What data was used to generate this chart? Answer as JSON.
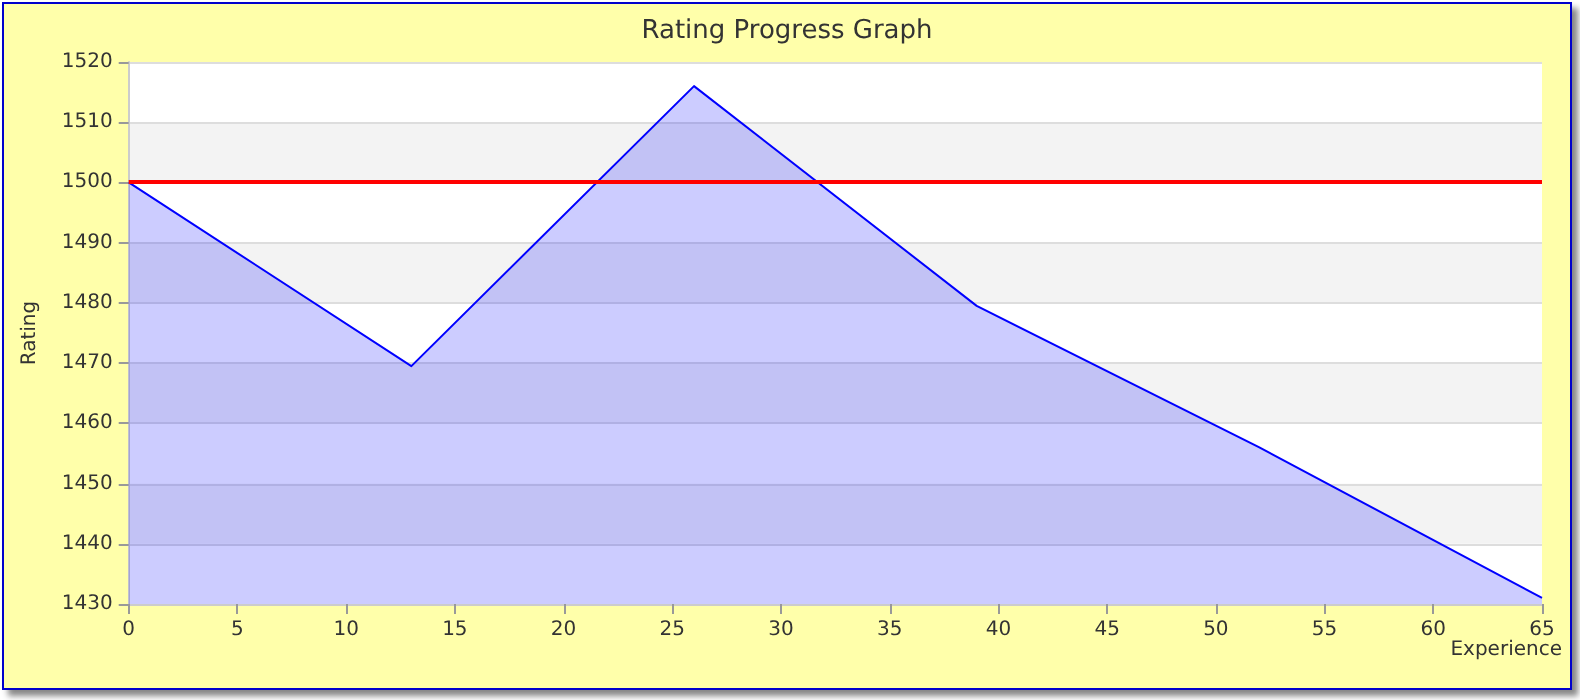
{
  "chart_data": {
    "type": "area",
    "title": "Rating Progress Graph",
    "xlabel": "Experience",
    "ylabel": "Rating",
    "x": [
      0,
      13,
      26,
      39,
      52,
      65
    ],
    "series": [
      {
        "color": "#0000ff",
        "values": [
          1500,
          1469.5,
          1516,
          1479.5,
          1456,
          1431
        ]
      }
    ],
    "xlim": [
      0,
      65
    ],
    "xticks": [
      0,
      5,
      10,
      15,
      20,
      25,
      30,
      35,
      40,
      45,
      50,
      55,
      60,
      65
    ],
    "ylim": [
      1430,
      1520
    ],
    "yticks": [
      1430,
      1440,
      1450,
      1460,
      1470,
      1480,
      1490,
      1500,
      1510,
      1520
    ],
    "ref_lines": [
      {
        "axis": "y",
        "value": 1500,
        "color": "#ff0000"
      }
    ],
    "grid": "y",
    "marker": "none",
    "line_style": "solid"
  }
}
